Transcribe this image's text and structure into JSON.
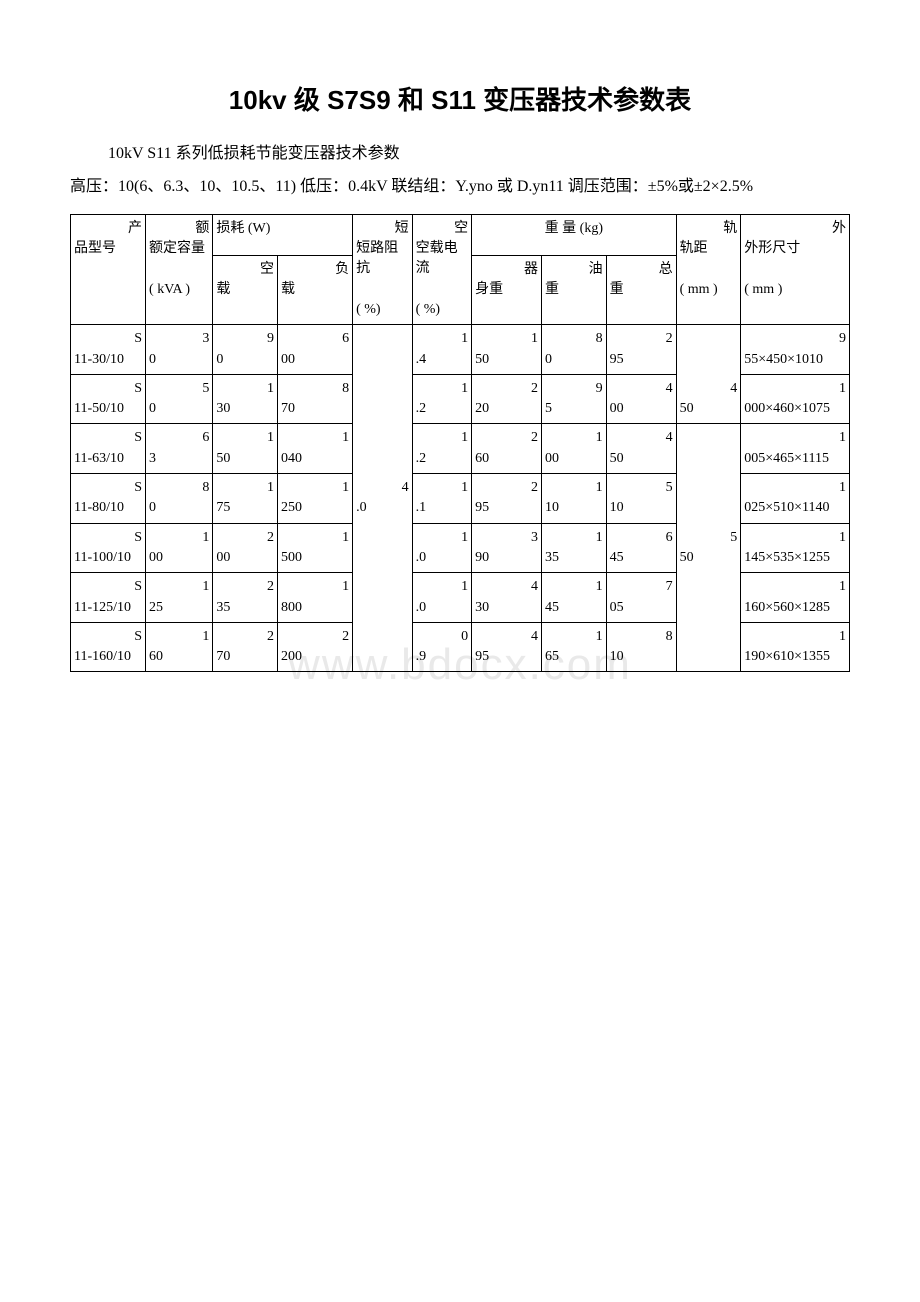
{
  "title": "10kv 级 S7S9 和 S11 变压器技术参数表",
  "intro": "10kV  S11 系列低损耗节能变压器技术参数",
  "sub": "高压：10(6、6.3、10、10.5、11)   低压：0.4kV    联结组：Y.yno 或 D.yn11    调压范围：±5%或±2×2.5%",
  "watermark": "www.bdocx.com",
  "headers": {
    "model_top": "产",
    "model_bot": "品型号",
    "cap_top": "额定容量",
    "cap_unit": "( kVA )",
    "loss_top": "损耗 (W)",
    "loss_nl_top": "空",
    "loss_nl_bot": "载",
    "loss_fl_top": "负",
    "loss_fl_bot": "载",
    "imp_top": "短路阻抗",
    "imp_unit": "( %)",
    "nlc_top": "空载电流",
    "nlc_unit": "( %)",
    "weight_top": "重 量 (kg)",
    "w_body_top": "器",
    "w_body_bot": "身重",
    "w_oil_top": "油",
    "w_oil_bot": "重",
    "w_total_top": "总",
    "w_total_bot": "重",
    "gauge_top": "轨距",
    "gauge_unit": "( mm )",
    "dim_top": "外形尺寸",
    "dim_unit": "( mm )"
  },
  "rows": [
    {
      "model": "S11-30/10",
      "cap": "30",
      "nl": "90",
      "fl": "600",
      "imp": "",
      "nlc": "1.4",
      "body": "150",
      "oil": "80",
      "total": "295",
      "gauge": "450",
      "dim": "955×450×1010"
    },
    {
      "model": "S11-50/10",
      "cap": "50",
      "nl": "130",
      "fl": "870",
      "imp": "",
      "nlc": "1.2",
      "body": "220",
      "oil": "95",
      "total": "400",
      "gauge": "",
      "dim": "1000×460×1075"
    },
    {
      "model": "S11-63/10",
      "cap": "63",
      "nl": "150",
      "fl": "1040",
      "imp": "",
      "nlc": "1.2",
      "body": "260",
      "oil": "100",
      "total": "450",
      "gauge": "",
      "dim": "1005×465×1115"
    },
    {
      "model": "S11-80/10",
      "cap": "80",
      "nl": "175",
      "fl": "1250",
      "imp": "4.0",
      "nlc": "1.1",
      "body": "295",
      "oil": "110",
      "total": "510",
      "gauge": "",
      "dim": "1025×510×1140"
    },
    {
      "model": "S11-100/10",
      "cap": "100",
      "nl": "200",
      "fl": "1500",
      "imp": "",
      "nlc": "1.0",
      "body": "390",
      "oil": "135",
      "total": "645",
      "gauge": "550",
      "dim": "1145×535×1255"
    },
    {
      "model": "S11-125/10",
      "cap": "125",
      "nl": "235",
      "fl": "1800",
      "imp": "",
      "nlc": "1.0",
      "body": "430",
      "oil": "145",
      "total": "705",
      "gauge": "",
      "dim": "1160×560×1285"
    },
    {
      "model": "S11-160/10",
      "cap": "160",
      "nl": "270",
      "fl": "2200",
      "imp": "",
      "nlc": "0.9",
      "body": "495",
      "oil": "165",
      "total": "810",
      "gauge": "",
      "dim": "1190×610×1355"
    }
  ],
  "colwidths": [
    "58",
    "52",
    "50",
    "58",
    "46",
    "46",
    "54",
    "50",
    "54",
    "50",
    "84"
  ]
}
